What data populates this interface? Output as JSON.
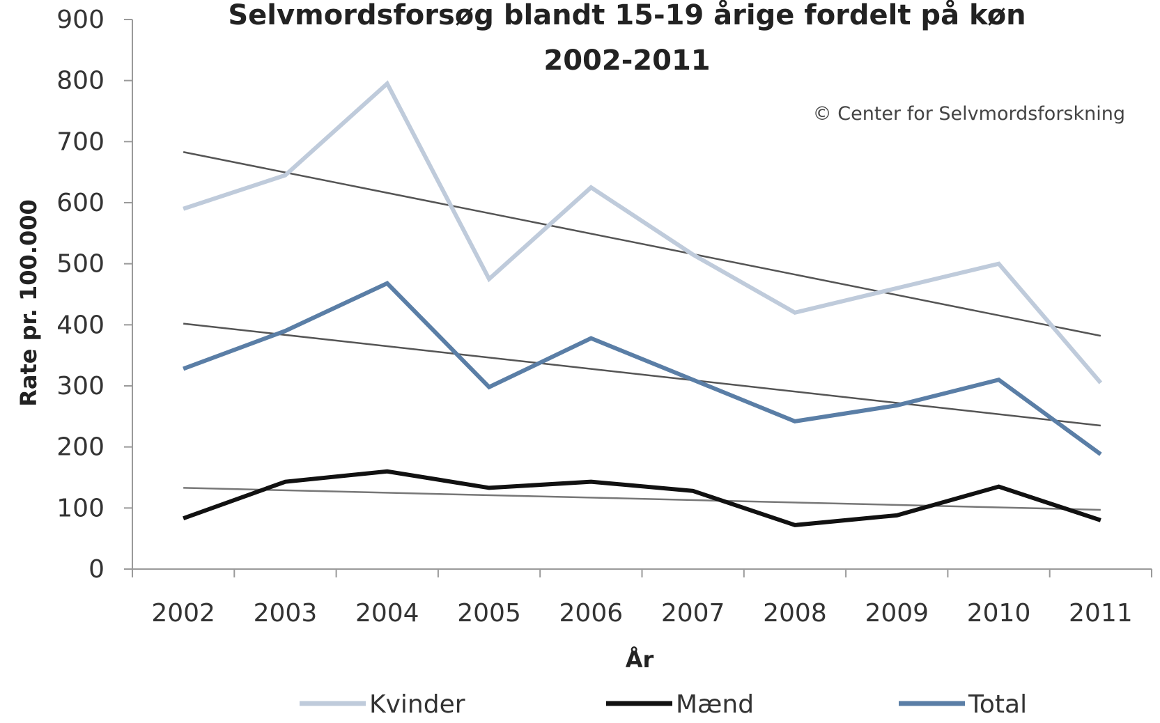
{
  "chart_data": {
    "type": "line",
    "title": [
      "Selvmordsforsøg blandt  15-19 årige fordelt på køn",
      "2002-2011"
    ],
    "copyright": "© Center for Selvmordsforskning",
    "xlabel": "År",
    "ylabel": "Rate pr. 100.000",
    "ylim": [
      0,
      900
    ],
    "yticks": [
      "0",
      "100",
      "200",
      "300",
      "400",
      "500",
      "600",
      "700",
      "800",
      "900"
    ],
    "categories": [
      "2002",
      "2003",
      "2004",
      "2005",
      "2006",
      "2007",
      "2008",
      "2009",
      "2010",
      "2011"
    ],
    "series": [
      {
        "name": "Kvinder",
        "color": "#bfcbdb",
        "values": [
          590,
          645,
          795,
          475,
          625,
          515,
          420,
          460,
          500,
          305
        ]
      },
      {
        "name": "Mænd",
        "color": "#111111",
        "values": [
          83,
          143,
          160,
          133,
          143,
          128,
          72,
          88,
          135,
          80
        ]
      },
      {
        "name": "Total",
        "color": "#5a7ea6",
        "values": [
          328,
          390,
          468,
          298,
          378,
          310,
          242,
          268,
          310,
          188
        ]
      }
    ],
    "trendlines": [
      {
        "series": "Kvinder",
        "color": "#555555",
        "start": 683,
        "end": 382
      },
      {
        "series": "Total",
        "color": "#555555",
        "start": 402,
        "end": 235
      },
      {
        "series": "Mænd",
        "color": "#777777",
        "start": 133,
        "end": 97
      }
    ],
    "grid": false,
    "legend_position": "bottom"
  }
}
